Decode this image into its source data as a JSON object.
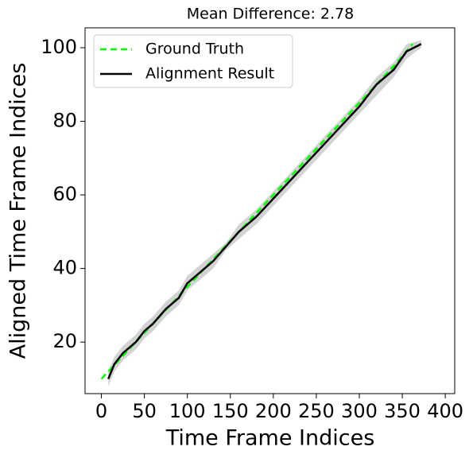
{
  "chart_data": {
    "type": "line",
    "title": "Mean Difference: 2.78",
    "x_label": "Time Frame Indices",
    "y_label": "Aligned Time Frame Indices",
    "xlim": [
      -19,
      411
    ],
    "ylim": [
      6,
      105.4
    ],
    "xticks": [
      0,
      50,
      100,
      150,
      200,
      250,
      300,
      350,
      400
    ],
    "yticks": [
      20,
      40,
      60,
      80,
      100
    ],
    "legend": "upper left",
    "band": {
      "color": "#d3d3d3",
      "x": [
        8,
        15,
        25,
        40,
        50,
        60,
        75,
        90,
        100,
        115,
        130,
        145,
        160,
        180,
        200,
        220,
        240,
        260,
        280,
        300,
        320,
        340,
        355,
        372
      ],
      "lower": [
        8,
        12,
        15,
        18,
        21,
        23,
        27,
        30,
        34,
        37,
        40,
        45,
        48,
        52,
        57,
        62,
        67,
        72,
        77,
        82,
        87,
        92,
        97,
        100
      ],
      "upper": [
        12,
        16,
        19,
        22,
        25,
        27,
        31,
        34,
        38,
        41,
        44,
        47,
        52,
        56,
        61,
        66,
        71,
        76,
        81,
        86,
        92,
        96,
        101,
        102
      ]
    },
    "series": [
      {
        "name": "Ground Truth",
        "color": "#00ff00",
        "linestyle": "dashed",
        "x": [
          0,
          20,
          40,
          60,
          80,
          100,
          120,
          140,
          160,
          180,
          200,
          220,
          240,
          260,
          280,
          300,
          320,
          340,
          362
        ],
        "values": [
          10,
          15,
          20,
          25,
          30,
          35,
          40,
          45,
          50,
          55,
          60,
          65,
          70,
          75,
          80,
          85,
          90,
          95,
          101
        ]
      },
      {
        "name": "Alignment Result",
        "color": "#000000",
        "linestyle": "solid",
        "x": [
          8,
          15,
          25,
          40,
          50,
          60,
          75,
          90,
          100,
          115,
          130,
          145,
          160,
          180,
          200,
          220,
          240,
          260,
          280,
          300,
          320,
          340,
          355,
          372
        ],
        "values": [
          10,
          14,
          17,
          20,
          23,
          25,
          29,
          32,
          36,
          39,
          42,
          46,
          50,
          54,
          59,
          64,
          69,
          74,
          79,
          84,
          90,
          94,
          99,
          101
        ]
      }
    ]
  }
}
